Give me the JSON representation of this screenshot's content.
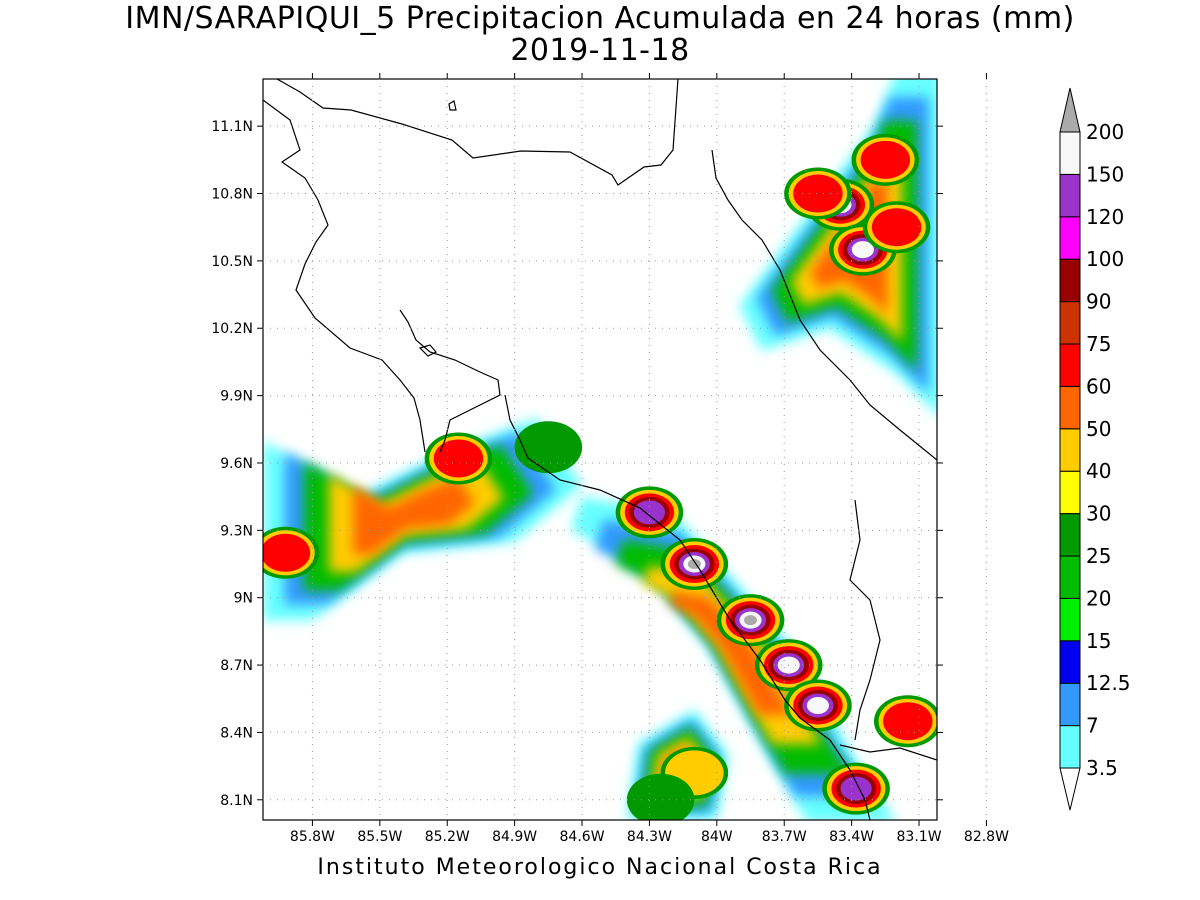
{
  "title": "IMN/SARAPIQUI_5 Precipitacion Acumulada en 24 horas (mm)",
  "date": "2019-11-18",
  "credit": "Instituto Meteorologico Nacional Costa Rica",
  "map": {
    "lon_range": [
      -86.02,
      -83.02
    ],
    "lat_range": [
      8.01,
      11.31
    ],
    "lon_ticks": [
      {
        "value": -85.8,
        "label": "85.8W"
      },
      {
        "value": -85.5,
        "label": "85.5W"
      },
      {
        "value": -85.2,
        "label": "85.2W"
      },
      {
        "value": -84.9,
        "label": "84.9W"
      },
      {
        "value": -84.6,
        "label": "84.6W"
      },
      {
        "value": -84.3,
        "label": "84.3W"
      },
      {
        "value": -84.0,
        "label": "84W"
      },
      {
        "value": -83.7,
        "label": "83.7W"
      },
      {
        "value": -83.4,
        "label": "83.4W"
      },
      {
        "value": -83.1,
        "label": "83.1W"
      },
      {
        "value": -82.8,
        "label": "82.8W"
      }
    ],
    "lat_ticks": [
      {
        "value": 8.1,
        "label": "8.1N"
      },
      {
        "value": 8.4,
        "label": "8.4N"
      },
      {
        "value": 8.7,
        "label": "8.7N"
      },
      {
        "value": 9.0,
        "label": "9N"
      },
      {
        "value": 9.3,
        "label": "9.3N"
      },
      {
        "value": 9.6,
        "label": "9.6N"
      },
      {
        "value": 9.9,
        "label": "9.9N"
      },
      {
        "value": 10.2,
        "label": "10.2N"
      },
      {
        "value": 10.5,
        "label": "10.5N"
      },
      {
        "value": 10.8,
        "label": "10.8N"
      },
      {
        "value": 11.1,
        "label": "11.1N"
      }
    ],
    "grid": true
  },
  "legend": {
    "levels": [
      {
        "label": "3.5",
        "color": "#66ffff"
      },
      {
        "label": "7",
        "color": "#3399ff"
      },
      {
        "label": "12.5",
        "color": "#0000ee"
      },
      {
        "label": "15",
        "color": "#00ee00"
      },
      {
        "label": "20",
        "color": "#00bb00"
      },
      {
        "label": "25",
        "color": "#009900"
      },
      {
        "label": "30",
        "color": "#ffff00"
      },
      {
        "label": "40",
        "color": "#ffcc00"
      },
      {
        "label": "50",
        "color": "#ff6600"
      },
      {
        "label": "60",
        "color": "#ff0000"
      },
      {
        "label": "75",
        "color": "#cc3300"
      },
      {
        "label": "90",
        "color": "#990000"
      },
      {
        "label": "100",
        "color": "#ff00ff"
      },
      {
        "label": "120",
        "color": "#9933cc"
      },
      {
        "label": "150",
        "color": "#f8f8f8"
      },
      {
        "label": "200",
        "color": "#aaaaaa"
      }
    ]
  },
  "precip_bands": [
    {
      "name": "north-caribbean-band",
      "points": [
        [
          -83.9,
          10.3
        ],
        [
          -83.6,
          10.7
        ],
        [
          -83.3,
          11.1
        ],
        [
          -83.2,
          11.35
        ],
        [
          -83.0,
          11.35
        ],
        [
          -83.0,
          9.8
        ],
        [
          -83.2,
          10.0
        ],
        [
          -83.5,
          10.2
        ],
        [
          -83.8,
          10.1
        ]
      ],
      "peaks": [
        [
          -83.45,
          10.75,
          200
        ],
        [
          -83.35,
          10.55,
          150
        ],
        [
          -83.55,
          10.8,
          75
        ],
        [
          -83.25,
          10.95,
          60
        ],
        [
          -83.2,
          10.65,
          60
        ]
      ]
    },
    {
      "name": "central-mountain-band",
      "points": [
        [
          -84.6,
          9.45
        ],
        [
          -84.2,
          9.38
        ],
        [
          -83.9,
          9.05
        ],
        [
          -83.6,
          8.7
        ],
        [
          -83.4,
          8.3
        ],
        [
          -83.2,
          8.0
        ],
        [
          -83.6,
          8.0
        ],
        [
          -83.8,
          8.35
        ],
        [
          -84.05,
          8.8
        ],
        [
          -84.35,
          9.15
        ],
        [
          -84.65,
          9.3
        ]
      ],
      "peaks": [
        [
          -84.1,
          9.15,
          200
        ],
        [
          -84.3,
          9.38,
          120
        ],
        [
          -83.85,
          8.9,
          200
        ],
        [
          -83.68,
          8.7,
          150
        ],
        [
          -83.55,
          8.52,
          150
        ],
        [
          -83.38,
          8.15,
          120
        ],
        [
          -83.15,
          8.45,
          75
        ]
      ]
    },
    {
      "name": "pacific-nw-band",
      "points": [
        [
          -86.02,
          9.7
        ],
        [
          -85.6,
          9.45
        ],
        [
          -85.2,
          9.65
        ],
        [
          -84.8,
          9.8
        ],
        [
          -84.6,
          9.5
        ],
        [
          -84.9,
          9.25
        ],
        [
          -85.4,
          9.2
        ],
        [
          -85.8,
          8.9
        ],
        [
          -86.02,
          8.9
        ]
      ],
      "peaks": [
        [
          -85.92,
          9.2,
          60
        ],
        [
          -85.15,
          9.62,
          60
        ],
        [
          -84.75,
          9.67,
          30
        ]
      ]
    },
    {
      "name": "southern-pacific-band",
      "points": [
        [
          -84.35,
          8.35
        ],
        [
          -84.1,
          8.5
        ],
        [
          -83.95,
          8.3
        ],
        [
          -84.0,
          8.01
        ],
        [
          -84.4,
          8.01
        ]
      ],
      "peaks": [
        [
          -84.1,
          8.22,
          40
        ],
        [
          -84.25,
          8.1,
          30
        ]
      ]
    }
  ]
}
